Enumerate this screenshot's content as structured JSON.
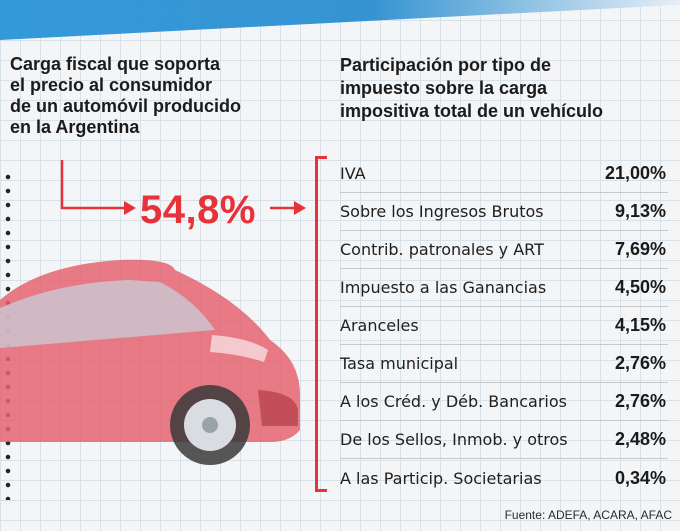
{
  "left_title": "Carga fiscal que soporta\nel precio al consumidor\nde un automóvil producido\nen la Argentina",
  "total_tax": "54,8%",
  "right_title": "Participación por tipo de\nimpuesto sobre la carga\nimpositiva total de un vehículo",
  "source": "Fuente: ADEFA, ACARA, AFAC",
  "colors": {
    "accent": "#e8323a",
    "car": "#e05560",
    "band": "#2a94d8"
  },
  "chart_data": {
    "type": "table",
    "title": "Participación por tipo de impuesto sobre la carga impositiva total de un vehículo",
    "total": {
      "label": "Carga fiscal que soporta el precio al consumidor de un automóvil producido en la Argentina",
      "value": 54.8,
      "display": "54,8%"
    },
    "rows": [
      {
        "label": "IVA",
        "value": 21.0,
        "display": "21,00%"
      },
      {
        "label": "Sobre los Ingresos Brutos",
        "value": 9.13,
        "display": "9,13%"
      },
      {
        "label": "Contrib. patronales y ART",
        "value": 7.69,
        "display": "7,69%"
      },
      {
        "label": "Impuesto a las Ganancias",
        "value": 4.5,
        "display": "4,50%"
      },
      {
        "label": "Aranceles",
        "value": 4.15,
        "display": "4,15%"
      },
      {
        "label": "Tasa municipal",
        "value": 2.76,
        "display": "2,76%"
      },
      {
        "label": "A los Créd. y Déb. Bancarios",
        "value": 2.76,
        "display": "2,76%"
      },
      {
        "label": "De los Sellos, Inmob. y otros",
        "value": 2.48,
        "display": "2,48%"
      },
      {
        "label": "A las Particip. Societarias",
        "value": 0.34,
        "display": "0,34%"
      }
    ]
  }
}
